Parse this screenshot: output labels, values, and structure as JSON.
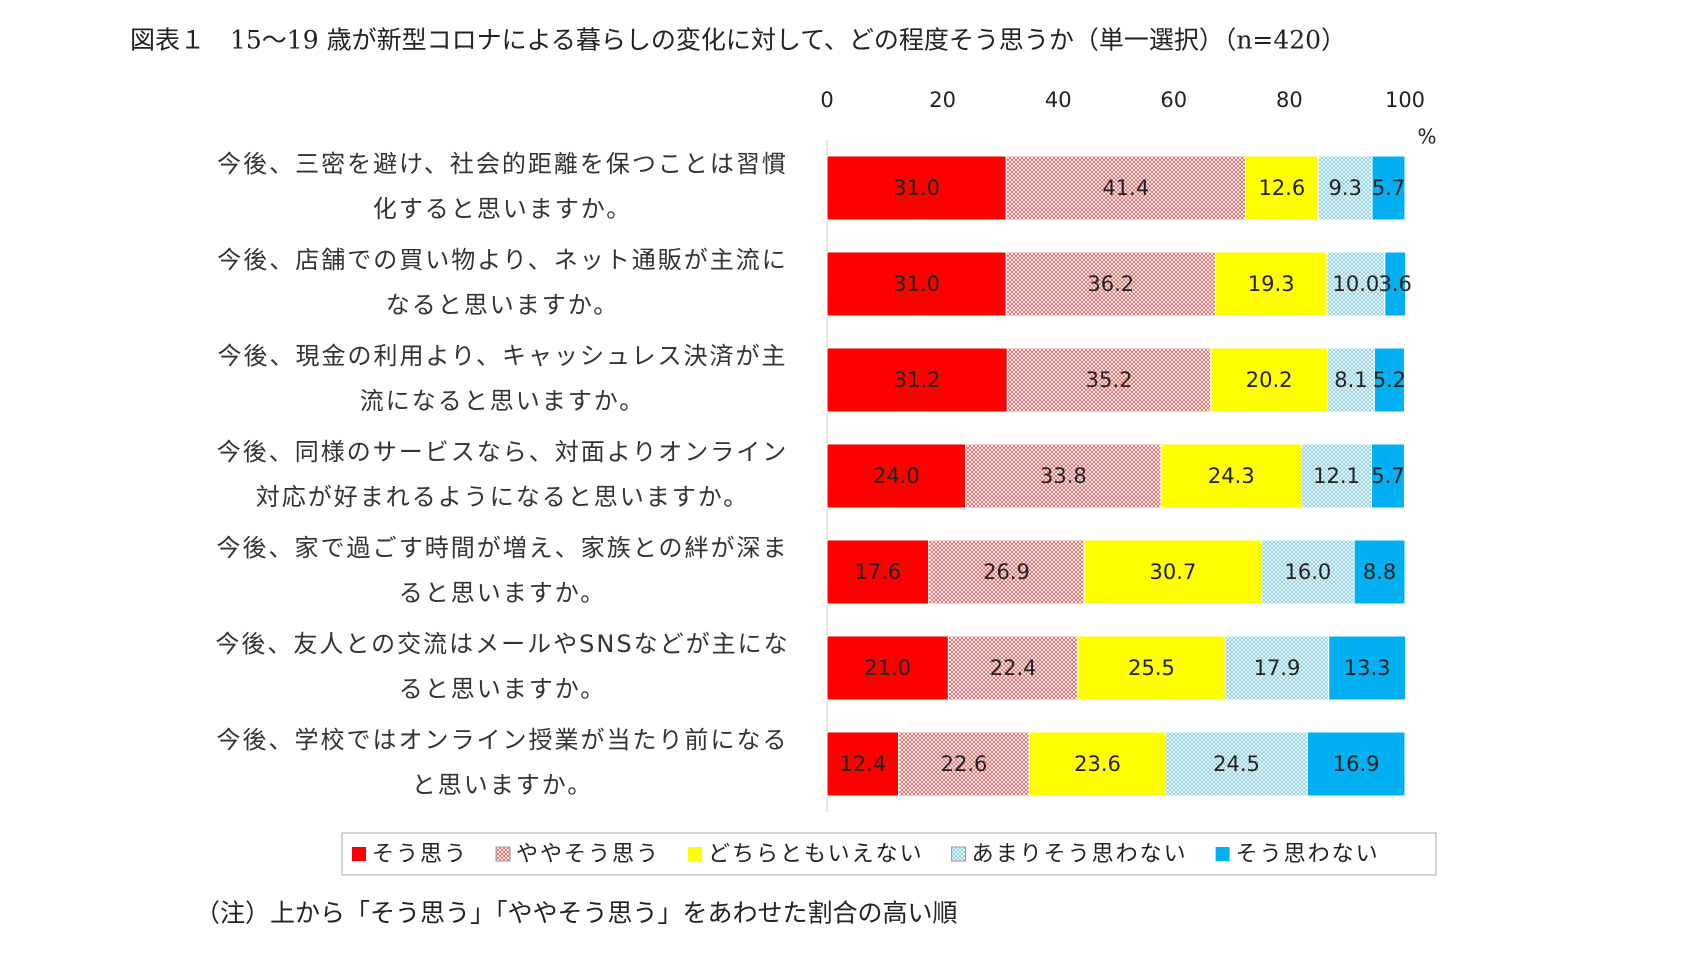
{
  "chart_data": {
    "type": "stacked-barh",
    "title": "図表１　15～19 歳が新型コロナによる暮らしの変化に対して、どの程度そう思うか（単一選択）（n=420）",
    "xlabel": "%",
    "note": "（注）上から「そう思う」「ややそう思う」をあわせた割合の高い順",
    "xlim": [
      0,
      100
    ],
    "xticks": [
      0,
      20,
      40,
      60,
      80,
      100
    ],
    "legend": "bottom",
    "categories": [
      "今後、三密を避け、社会的距離を保つことは習慣化すると思いますか。",
      "今後、店舗での買い物より、ネット通販が主流になると思いますか。",
      "今後、現金の利用より、キャッシュレス決済が主流になると思いますか。",
      "今後、同様のサービスなら、対面よりオンライン対応が好まれるようになると思いますか。",
      "今後、家で過ごす時間が増え、家族との絆が深まると思いますか。",
      "今後、友人との交流はメールやSNSなどが主になると思いますか。",
      "今後、学校ではオンライン授業が当たり前になると思いますか。"
    ],
    "series": [
      {
        "name": "そう思う",
        "color": "#ff0000",
        "hatch": false,
        "values": [
          31.0,
          31.0,
          31.2,
          24.0,
          17.6,
          21.0,
          12.4
        ],
        "value_labels": [
          "31.0",
          "31.0",
          "31.2",
          "24.0",
          "17.6",
          "21.0",
          "12.4"
        ]
      },
      {
        "name": "ややそう思う",
        "color": "#e06060",
        "hatch": true,
        "values": [
          41.4,
          36.2,
          35.2,
          33.8,
          26.9,
          22.4,
          22.6
        ]
      },
      {
        "name": "どちらともいえない",
        "color": "#ffff00",
        "hatch": false,
        "values": [
          12.6,
          19.3,
          20.2,
          24.3,
          30.7,
          25.5,
          23.6
        ]
      },
      {
        "name": "あまりそう思わない",
        "color": "#7fc8e0",
        "hatch": true,
        "values": [
          9.3,
          10.0,
          8.1,
          12.1,
          16.0,
          17.9,
          24.5
        ],
        "value_labels": [
          "9.3",
          "10.0",
          "8.1",
          "12.1",
          "16.0",
          "17.9",
          "24.5"
        ]
      },
      {
        "name": "そう思わない",
        "color": "#00b0f0",
        "hatch": false,
        "values": [
          5.7,
          3.6,
          5.2,
          5.7,
          8.8,
          13.3,
          16.9
        ]
      }
    ]
  }
}
